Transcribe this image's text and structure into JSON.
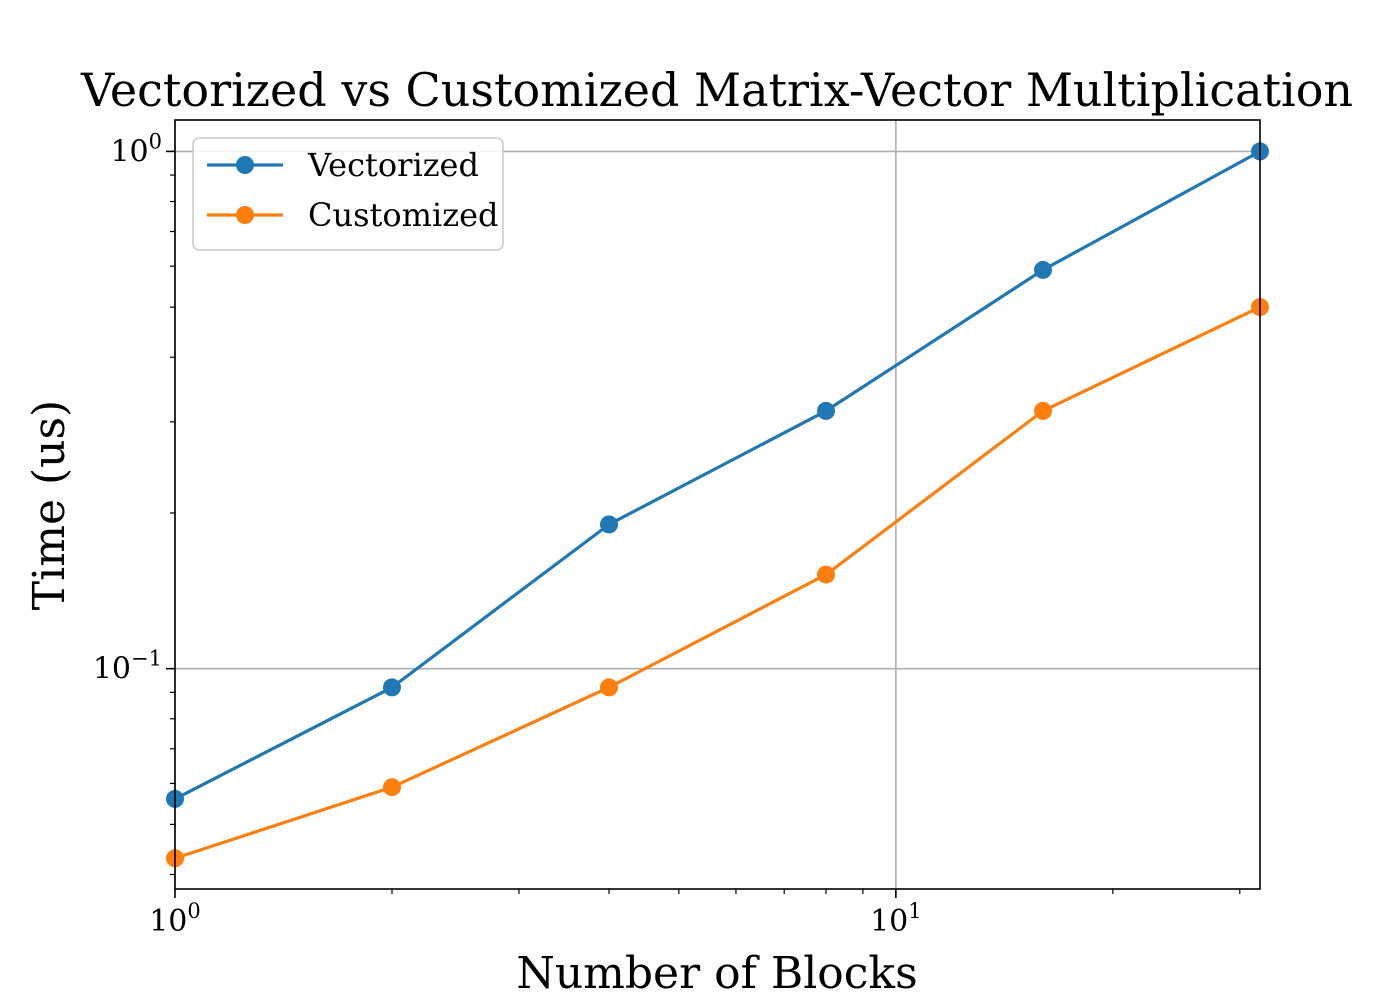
{
  "chart_data": {
    "type": "line",
    "title": "Vectorized vs Customized Matrix-Vector Multiplication",
    "xlabel": "Number of Blocks",
    "ylabel": "Time (us)",
    "xscale": "log",
    "yscale": "log",
    "xlim": [
      1,
      32
    ],
    "ylim": [
      0.0375,
      1.15
    ],
    "x_ticks": [
      {
        "value": 1,
        "base": "10",
        "exp": "0"
      },
      {
        "value": 10,
        "base": "10",
        "exp": "1"
      }
    ],
    "y_ticks": [
      {
        "value": 0.1,
        "base": "10",
        "exp": "−1"
      },
      {
        "value": 1,
        "base": "10",
        "exp": "0"
      }
    ],
    "grid": true,
    "legend_position": "top-left",
    "x": [
      1,
      2,
      4,
      8,
      16,
      32
    ],
    "series": [
      {
        "name": "Vectorized",
        "color": "#1f77b4",
        "values": [
          0.056,
          0.092,
          0.19,
          0.315,
          0.59,
          1.0
        ]
      },
      {
        "name": "Customized",
        "color": "#ff7f0e",
        "values": [
          0.043,
          0.059,
          0.092,
          0.152,
          0.315,
          0.5
        ]
      }
    ]
  }
}
